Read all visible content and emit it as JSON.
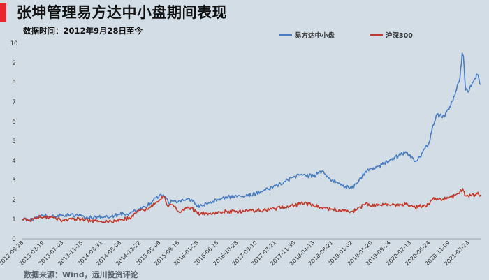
{
  "header": {
    "title": "张坤管理易方达中小盘期间表现",
    "subtitle": "数据时间：2012年9月28日至今",
    "accent_color": "#e8262b"
  },
  "footer": {
    "source": "数据来源：Wind，远川投资评论"
  },
  "chart_data": {
    "type": "line",
    "title": "张坤管理易方达中小盘期间表现",
    "xlabel": "",
    "ylabel": "",
    "ylim": [
      0,
      10
    ],
    "yticks": [
      0,
      1,
      2,
      3,
      4,
      5,
      6,
      7,
      8,
      9,
      10
    ],
    "xlim": [
      "2012-09-28",
      "2021-06-18"
    ],
    "x_tick_labels": [
      "2012-09-28",
      "2013-02-19",
      "2013-07-03",
      "2013-11-15",
      "2014-03-31",
      "2014-08-08",
      "2014-12-22",
      "2015-05-08",
      "2015-09-16",
      "2016-01-28",
      "2016-06-15",
      "2016-10-28",
      "2017-03-10",
      "2017-07-21",
      "2017-11-30",
      "2018-04-13",
      "2018-08-21",
      "2019-01-02",
      "2019-05-20",
      "2019-09-24",
      "2020-02-13",
      "2020-06-24",
      "2020-11-09",
      "2021-03-23"
    ],
    "legend": {
      "placement": "top"
    },
    "grid": false,
    "series": [
      {
        "name": "易方达中小盘",
        "color": "#4a7cc0",
        "points": [
          [
            "2012-09-28",
            1.0
          ],
          [
            "2012-11-20",
            0.95
          ],
          [
            "2013-01-10",
            1.1
          ],
          [
            "2013-02-19",
            1.2
          ],
          [
            "2013-05-10",
            1.15
          ],
          [
            "2013-07-03",
            1.2
          ],
          [
            "2013-10-01",
            1.2
          ],
          [
            "2013-11-15",
            1.15
          ],
          [
            "2014-01-20",
            1.08
          ],
          [
            "2014-03-31",
            1.12
          ],
          [
            "2014-06-10",
            1.15
          ],
          [
            "2014-08-08",
            1.25
          ],
          [
            "2014-10-15",
            1.3
          ],
          [
            "2014-12-22",
            1.5
          ],
          [
            "2015-02-15",
            1.7
          ],
          [
            "2015-04-15",
            2.1
          ],
          [
            "2015-06-05",
            2.25
          ],
          [
            "2015-07-10",
            1.85
          ],
          [
            "2015-08-10",
            1.95
          ],
          [
            "2015-09-16",
            1.9
          ],
          [
            "2015-11-15",
            2.05
          ],
          [
            "2015-12-20",
            2.0
          ],
          [
            "2016-01-28",
            1.65
          ],
          [
            "2016-04-15",
            1.85
          ],
          [
            "2016-06-15",
            2.0
          ],
          [
            "2016-08-20",
            2.15
          ],
          [
            "2016-10-28",
            2.15
          ],
          [
            "2017-01-10",
            2.2
          ],
          [
            "2017-03-10",
            2.3
          ],
          [
            "2017-05-15",
            2.5
          ],
          [
            "2017-07-21",
            2.7
          ],
          [
            "2017-09-20",
            2.9
          ],
          [
            "2017-11-30",
            3.2
          ],
          [
            "2018-01-25",
            3.25
          ],
          [
            "2018-04-13",
            3.2
          ],
          [
            "2018-06-10",
            3.45
          ],
          [
            "2018-07-20",
            3.2
          ],
          [
            "2018-08-21",
            3.0
          ],
          [
            "2018-10-20",
            2.75
          ],
          [
            "2019-01-02",
            2.6
          ],
          [
            "2019-02-10",
            2.85
          ],
          [
            "2019-04-10",
            3.45
          ],
          [
            "2019-05-20",
            3.6
          ],
          [
            "2019-07-15",
            3.75
          ],
          [
            "2019-09-24",
            4.0
          ],
          [
            "2019-12-10",
            4.3
          ],
          [
            "2020-01-20",
            4.4
          ],
          [
            "2020-02-13",
            4.3
          ],
          [
            "2020-03-20",
            3.95
          ],
          [
            "2020-05-10",
            4.4
          ],
          [
            "2020-06-24",
            4.9
          ],
          [
            "2020-07-20",
            5.8
          ],
          [
            "2020-08-20",
            6.4
          ],
          [
            "2020-09-25",
            6.2
          ],
          [
            "2020-11-09",
            6.6
          ],
          [
            "2020-12-20",
            7.3
          ],
          [
            "2021-01-25",
            8.2
          ],
          [
            "2021-02-10",
            9.5
          ],
          [
            "2021-02-18",
            9.35
          ],
          [
            "2021-03-05",
            7.6
          ],
          [
            "2021-03-23",
            7.5
          ],
          [
            "2021-04-15",
            7.8
          ],
          [
            "2021-05-10",
            8.2
          ],
          [
            "2021-05-25",
            8.4
          ],
          [
            "2021-06-18",
            7.9
          ]
        ]
      },
      {
        "name": "沪深300",
        "color": "#c0392b",
        "points": [
          [
            "2012-09-28",
            1.0
          ],
          [
            "2012-11-20",
            0.93
          ],
          [
            "2013-01-10",
            1.1
          ],
          [
            "2013-02-19",
            1.1
          ],
          [
            "2013-05-10",
            1.08
          ],
          [
            "2013-07-03",
            0.93
          ],
          [
            "2013-09-15",
            1.0
          ],
          [
            "2013-11-15",
            1.0
          ],
          [
            "2014-01-20",
            0.92
          ],
          [
            "2014-03-31",
            0.9
          ],
          [
            "2014-06-10",
            0.88
          ],
          [
            "2014-08-08",
            0.98
          ],
          [
            "2014-10-15",
            1.05
          ],
          [
            "2014-12-22",
            1.45
          ],
          [
            "2015-02-15",
            1.5
          ],
          [
            "2015-04-15",
            1.85
          ],
          [
            "2015-06-05",
            2.2
          ],
          [
            "2015-07-10",
            1.65
          ],
          [
            "2015-08-10",
            1.75
          ],
          [
            "2015-09-16",
            1.4
          ],
          [
            "2015-11-15",
            1.55
          ],
          [
            "2015-12-20",
            1.58
          ],
          [
            "2016-01-28",
            1.28
          ],
          [
            "2016-04-15",
            1.3
          ],
          [
            "2016-06-15",
            1.3
          ],
          [
            "2016-08-20",
            1.4
          ],
          [
            "2016-10-28",
            1.4
          ],
          [
            "2017-01-10",
            1.42
          ],
          [
            "2017-03-10",
            1.45
          ],
          [
            "2017-05-15",
            1.45
          ],
          [
            "2017-07-21",
            1.55
          ],
          [
            "2017-09-20",
            1.65
          ],
          [
            "2017-11-30",
            1.7
          ],
          [
            "2018-01-25",
            1.85
          ],
          [
            "2018-04-13",
            1.7
          ],
          [
            "2018-06-10",
            1.6
          ],
          [
            "2018-08-21",
            1.5
          ],
          [
            "2018-10-20",
            1.45
          ],
          [
            "2019-01-02",
            1.4
          ],
          [
            "2019-02-10",
            1.5
          ],
          [
            "2019-04-10",
            1.78
          ],
          [
            "2019-05-20",
            1.68
          ],
          [
            "2019-07-15",
            1.75
          ],
          [
            "2019-09-24",
            1.72
          ],
          [
            "2019-12-10",
            1.75
          ],
          [
            "2020-01-20",
            1.82
          ],
          [
            "2020-02-13",
            1.7
          ],
          [
            "2020-03-20",
            1.6
          ],
          [
            "2020-05-10",
            1.7
          ],
          [
            "2020-06-24",
            1.75
          ],
          [
            "2020-07-20",
            2.05
          ],
          [
            "2020-08-20",
            2.05
          ],
          [
            "2020-09-25",
            2.0
          ],
          [
            "2020-11-09",
            2.1
          ],
          [
            "2020-12-20",
            2.2
          ],
          [
            "2021-01-25",
            2.4
          ],
          [
            "2021-02-10",
            2.5
          ],
          [
            "2021-02-18",
            2.45
          ],
          [
            "2021-03-05",
            2.2
          ],
          [
            "2021-03-23",
            2.2
          ],
          [
            "2021-04-15",
            2.2
          ],
          [
            "2021-05-10",
            2.25
          ],
          [
            "2021-05-25",
            2.3
          ],
          [
            "2021-06-18",
            2.25
          ]
        ]
      }
    ]
  }
}
